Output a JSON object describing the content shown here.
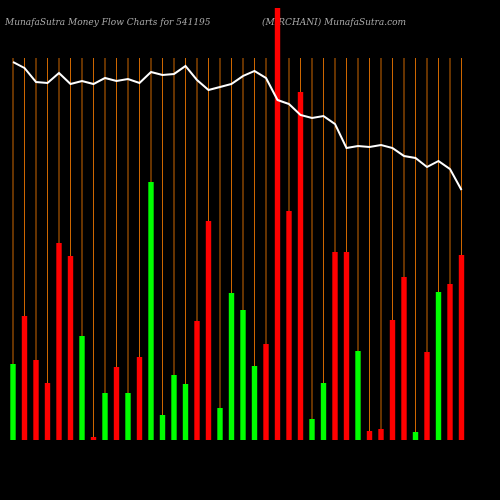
{
  "chart_data": {
    "type": "bar",
    "title": "MunafaSutra  Money Flow  Charts for 541195",
    "subtitle": "(MIRCHANI) MunafaSutra.com",
    "values": [
      76,
      124,
      80,
      57,
      197,
      184,
      104,
      3,
      47,
      73,
      47,
      83,
      258,
      25,
      65,
      56,
      119,
      219,
      32,
      147,
      130,
      74,
      96,
      432,
      229,
      348,
      21,
      57,
      188,
      188,
      89,
      9,
      11,
      120,
      163,
      8,
      88,
      148,
      156,
      185
    ],
    "colors": [
      "#00ff00",
      "#ff0000",
      "#ff0000",
      "#ff0000",
      "#ff0000",
      "#ff0000",
      "#00ff00",
      "#ff0000",
      "#00ff00",
      "#ff0000",
      "#00ff00",
      "#ff0000",
      "#00ff00",
      "#00ff00",
      "#00ff00",
      "#00ff00",
      "#ff0000",
      "#ff0000",
      "#00ff00",
      "#00ff00",
      "#00ff00",
      "#00ff00",
      "#ff0000",
      "#ff0000",
      "#ff0000",
      "#ff0000",
      "#00ff00",
      "#00ff00",
      "#ff0000",
      "#ff0000",
      "#00ff00",
      "#ff0000",
      "#ff0000",
      "#ff0000",
      "#ff0000",
      "#00ff00",
      "#ff0000",
      "#00ff00",
      "#ff0000",
      "#ff0000"
    ],
    "line": [
      378,
      372,
      358,
      357,
      367,
      356,
      359,
      356,
      362,
      359,
      361,
      357,
      368,
      365,
      366,
      374,
      360,
      350,
      353,
      356,
      364,
      369,
      362,
      340,
      336,
      325,
      322,
      324,
      316,
      292,
      294,
      293,
      295,
      292,
      284,
      282,
      273,
      279,
      271,
      250
    ],
    "line_color": "#ffffff",
    "grid_color": "#cc6600",
    "ylim": [
      0,
      440
    ]
  }
}
